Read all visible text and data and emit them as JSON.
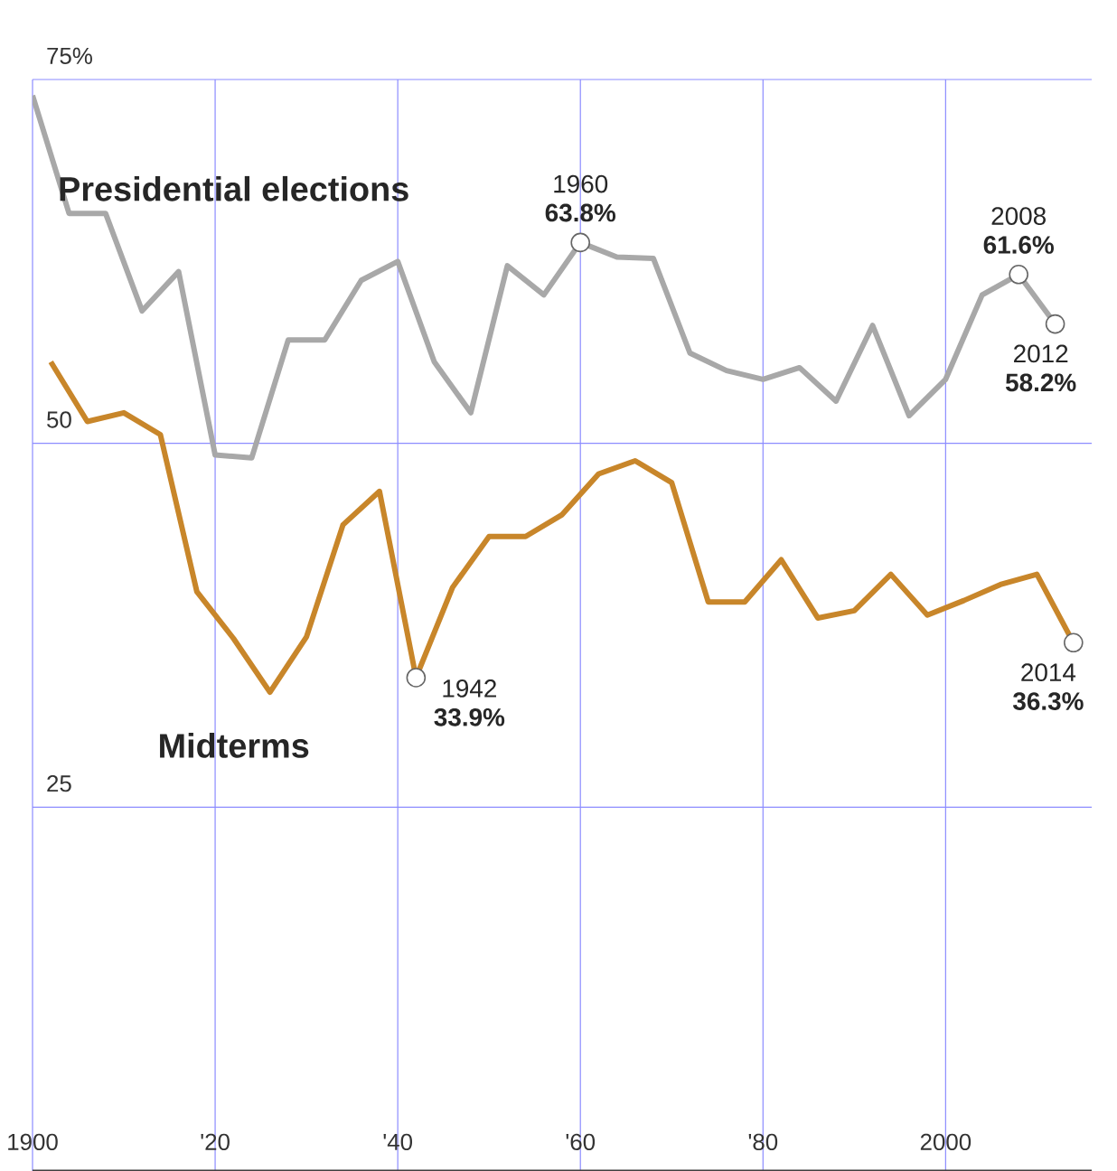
{
  "chart_data": {
    "type": "line",
    "xlim": [
      1900,
      2016
    ],
    "ylim": [
      0,
      75
    ],
    "xticks": [
      {
        "value": 1900,
        "label": "1900"
      },
      {
        "value": 1920,
        "label": "'20"
      },
      {
        "value": 1940,
        "label": "'40"
      },
      {
        "value": 1960,
        "label": "'60"
      },
      {
        "value": 1980,
        "label": "'80"
      },
      {
        "value": 2000,
        "label": "2000"
      }
    ],
    "yticks": [
      {
        "value": 25,
        "label": "25"
      },
      {
        "value": 50,
        "label": "50"
      },
      {
        "value": 75,
        "label": "75%"
      }
    ],
    "grid": true,
    "legend": false,
    "marker": "none",
    "line_style": "solid",
    "series": [
      {
        "name": "Presidential elections",
        "color": "#a8a8a8",
        "x": [
          1900,
          1904,
          1908,
          1912,
          1916,
          1920,
          1924,
          1928,
          1932,
          1936,
          1940,
          1944,
          1948,
          1952,
          1956,
          1960,
          1964,
          1968,
          1972,
          1976,
          1980,
          1984,
          1988,
          1992,
          1996,
          2000,
          2004,
          2008,
          2012
        ],
        "values": [
          73.9,
          65.8,
          65.8,
          59.1,
          61.8,
          49.2,
          49.0,
          57.1,
          57.1,
          61.2,
          62.5,
          55.6,
          52.1,
          62.2,
          60.2,
          63.8,
          62.8,
          62.7,
          56.2,
          55.0,
          54.4,
          55.2,
          52.9,
          58.1,
          51.9,
          54.4,
          60.2,
          61.6,
          58.2
        ]
      },
      {
        "name": "Midterms",
        "color": "#c8862a",
        "x": [
          1902,
          1906,
          1910,
          1914,
          1918,
          1922,
          1926,
          1930,
          1934,
          1938,
          1942,
          1946,
          1950,
          1954,
          1958,
          1962,
          1966,
          1970,
          1974,
          1978,
          1982,
          1986,
          1990,
          1994,
          1998,
          2002,
          2006,
          2010,
          2014
        ],
        "values": [
          55.6,
          51.5,
          52.1,
          50.6,
          39.8,
          36.6,
          32.9,
          36.7,
          44.4,
          46.7,
          33.9,
          40.1,
          43.6,
          43.6,
          45.1,
          47.9,
          48.8,
          47.3,
          39.1,
          39.1,
          42.0,
          38.0,
          38.5,
          41.0,
          38.2,
          39.2,
          40.3,
          41.0,
          36.3
        ]
      }
    ],
    "annotations": [
      {
        "text": "1960 **63.8%**",
        "x": 1960,
        "y": 63.8
      },
      {
        "text": "1942 **33.9%**",
        "x": 1942,
        "y": 33.9
      },
      {
        "text": "2008 **61.6%**",
        "x": 2008,
        "y": 61.6
      },
      {
        "text": "2012 **58.2%**",
        "x": 2012,
        "y": 58.2
      },
      {
        "text": "2014 **36.3%**",
        "x": 2014,
        "y": 36.3
      }
    ]
  }
}
